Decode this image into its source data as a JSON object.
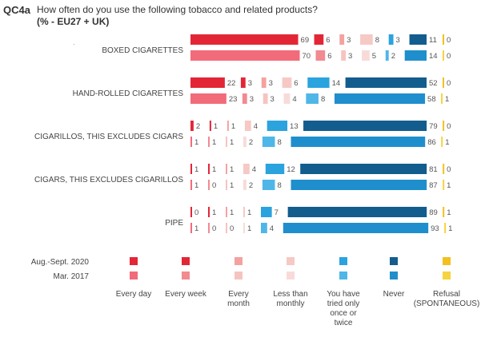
{
  "header": {
    "code": "QC4a",
    "title": "How often do you use the following tobacco and related products?",
    "subtitle": "(% - EU27 + UK)",
    "stray_mark": "·"
  },
  "chart_data": {
    "type": "bar",
    "stacking": "segmented, each category drawn as its own segment with value label",
    "categories": [
      "BOXED CIGARETTES",
      "HAND-ROLLED CIGARETTES",
      "CIGARILLOS, THIS EXCLUDES CIGARS",
      "CIGARS, THIS EXCLUDES CIGARILLOS",
      "PIPE"
    ],
    "response_options": [
      "Every day",
      "Every week",
      "Every month",
      "Less than monthly",
      "You have tried only once or twice",
      "Never",
      "Refusal (SPONTANEOUS)"
    ],
    "series": [
      {
        "name": "Aug.-Sept. 2020",
        "colors": [
          "#e32636",
          "#e32636",
          "#f4a2a0",
          "#f6c9c5",
          "#2aa3de",
          "#125d8e",
          "#f2c021"
        ],
        "values": [
          [
            69,
            6,
            3,
            8,
            3,
            11,
            0
          ],
          [
            22,
            3,
            3,
            6,
            14,
            52,
            0
          ],
          [
            2,
            1,
            1,
            4,
            13,
            79,
            0
          ],
          [
            1,
            1,
            1,
            4,
            12,
            81,
            0
          ],
          [
            0,
            1,
            1,
            1,
            7,
            89,
            1
          ]
        ]
      },
      {
        "name": "Mar. 2017",
        "colors": [
          "#f26b7a",
          "#f28a91",
          "#f6c4c0",
          "#f8dbd8",
          "#4fb6e8",
          "#1f8ecd",
          "#f5d43f"
        ],
        "values": [
          [
            70,
            6,
            3,
            5,
            2,
            14,
            0
          ],
          [
            23,
            3,
            3,
            4,
            8,
            58,
            1
          ],
          [
            1,
            1,
            1,
            2,
            8,
            86,
            1
          ],
          [
            1,
            0,
            1,
            2,
            8,
            87,
            1
          ],
          [
            1,
            0,
            0,
            1,
            4,
            93,
            1
          ]
        ]
      }
    ],
    "legend_position": "bottom, as a grid of swatches per series and response option",
    "grid": false
  }
}
